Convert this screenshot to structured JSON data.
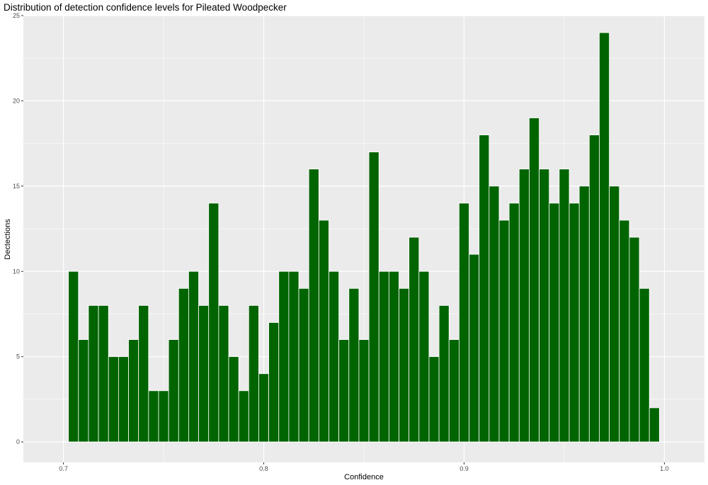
{
  "chart_data": {
    "type": "bar",
    "title": "Distribution of detection confidence levels for Pileated Woodpecker",
    "xlabel": "Confidence",
    "ylabel": "Dectections",
    "xlim": [
      0.68,
      1.02
    ],
    "ylim": [
      -1.2,
      25
    ],
    "x_ticks": [
      0.7,
      0.8,
      0.9,
      1.0
    ],
    "x_tick_labels": [
      "0.7",
      "0.8",
      "0.9",
      "1.0"
    ],
    "y_ticks": [
      0,
      5,
      10,
      15,
      20,
      25
    ],
    "y_tick_labels": [
      "0",
      "5",
      "10",
      "15",
      "20",
      "25"
    ],
    "bin_start": 0.7025,
    "bin_width": 0.005,
    "values": [
      10,
      6,
      8,
      8,
      5,
      5,
      6,
      8,
      3,
      3,
      6,
      9,
      10,
      8,
      14,
      8,
      5,
      3,
      8,
      4,
      7,
      10,
      10,
      9,
      16,
      13,
      10,
      6,
      9,
      6,
      17,
      10,
      10,
      9,
      12,
      10,
      5,
      8,
      6,
      14,
      11,
      18,
      15,
      13,
      14,
      16,
      19,
      16,
      14,
      16,
      14,
      15,
      18,
      24,
      15,
      13,
      12,
      9,
      2
    ],
    "bar_color": "#006400",
    "panel_background": "#ebebeb",
    "grid": true
  }
}
